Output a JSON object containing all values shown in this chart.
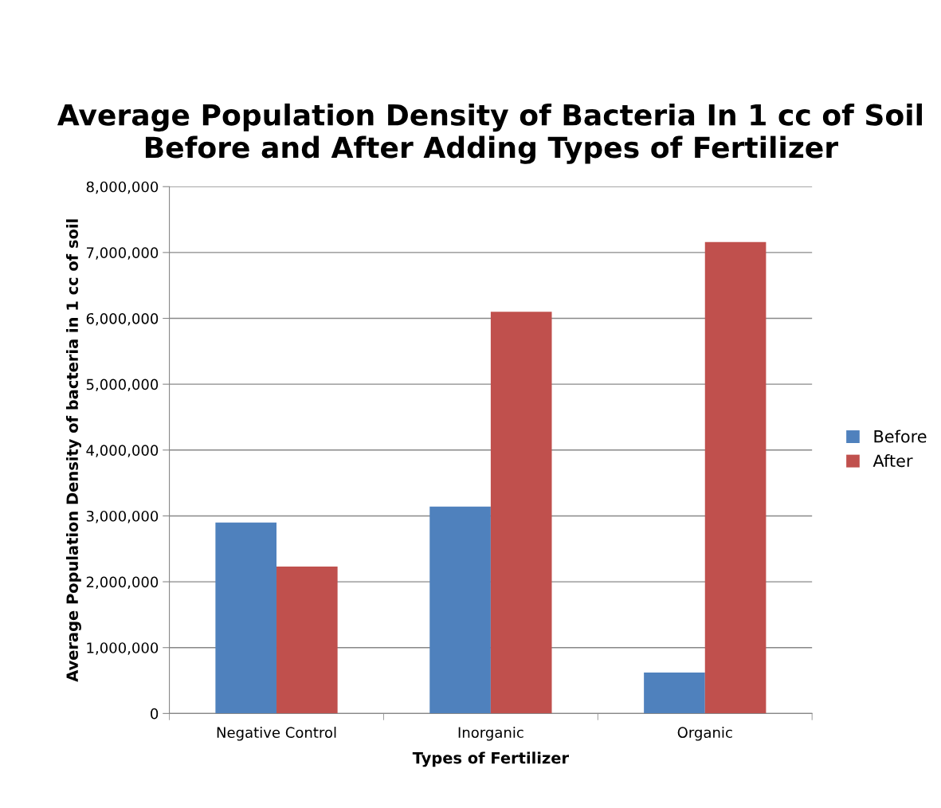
{
  "chart_data": {
    "type": "bar",
    "title": "Average Population Density of Bacteria In 1 cc of Soil Before and After Adding Types of Fertilizer",
    "xlabel": "Types of Fertilizer",
    "ylabel": "Average Population Density of bacteria in 1 cc of soil",
    "categories": [
      "Negative Control",
      "Inorganic",
      "Organic"
    ],
    "series": [
      {
        "name": "Before",
        "color": "#4f81bd",
        "values": [
          2900000,
          3140000,
          620000
        ]
      },
      {
        "name": "After",
        "color": "#c0504d",
        "values": [
          2230000,
          6100000,
          7160000
        ]
      }
    ],
    "ylim": [
      0,
      8000000
    ],
    "yticks": [
      0,
      {
        "value": 1000000,
        "label": "1,000,000"
      },
      {
        "value": 2000000,
        "label": "2,000,000"
      },
      {
        "value": 3000000,
        "label": "3,000,000"
      },
      {
        "value": 4000000,
        "label": "4,000,000"
      },
      {
        "value": 5000000,
        "label": "5,000,000"
      },
      {
        "value": 6000000,
        "label": "6,000,000"
      },
      {
        "value": 7000000,
        "label": "7,000,000"
      },
      {
        "value": 8000000,
        "label": "8,000,000"
      }
    ],
    "grid": "y",
    "legend": "right"
  }
}
